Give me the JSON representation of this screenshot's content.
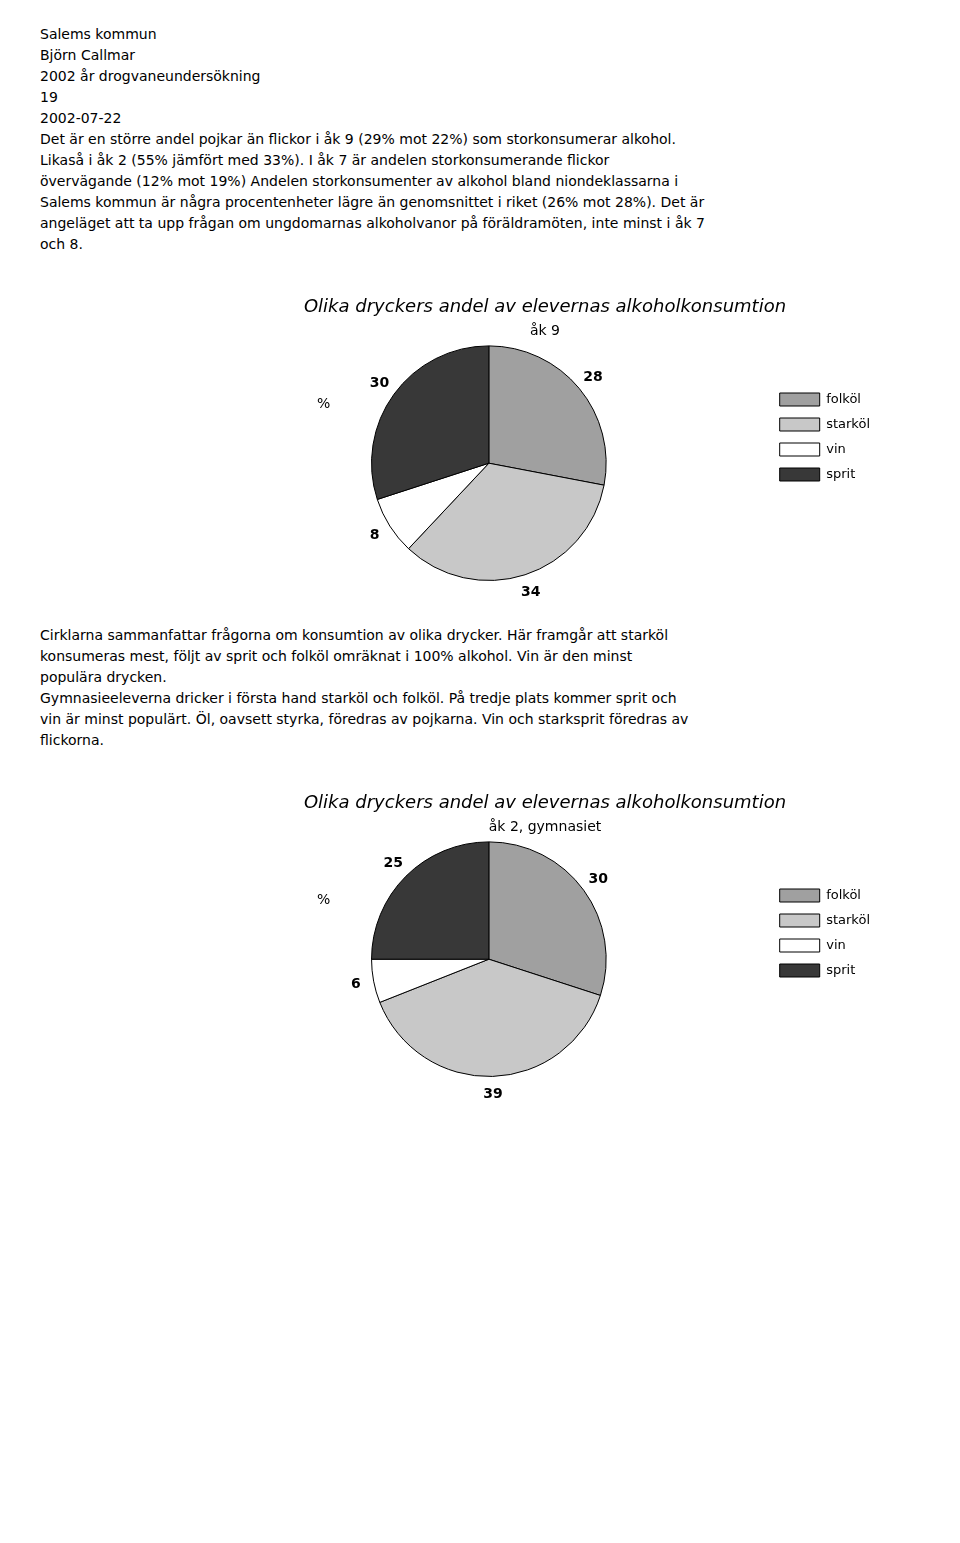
{
  "chart_data": [
    {
      "type": "pie",
      "title": "Olika dryckers andel av elevernas alkoholkonsumtion",
      "subtitle": "åk 9",
      "annotations": [
        "Salems kommun",
        "Björn Callmar",
        "2002 år drogvaneundersökning",
        "19",
        "2002-07-22",
        "Det är en större andel pojkar än flickor i åk 9 (29% mot 22%) som storkonsumerar alkohol.",
        "Likaså i åk 2 (55% jämfört med 33%). I åk 7 är andelen storkonsumerande flickor",
        "övervägande (12% mot 19%) Andelen storkonsumenter av alkohol bland niondeklassarna i",
        "Salems kommun är några procentenheter lägre än genomsnittet i riket (26% mot 28%). Det är",
        "angeläget att ta upp frågan om ungdomarnas alkoholvanor på föräldramöten, inte minst i åk 7",
        "och 8."
      ],
      "categories": [
        "folköl",
        "starköl",
        "vin",
        "sprit"
      ],
      "values": [
        28,
        34,
        8,
        30
      ],
      "colors": [
        "#a0a0a0",
        "#c8c8c8",
        "#ffffff",
        "#383838"
      ],
      "ylabel": "%",
      "data_labels": true,
      "legend": "right"
    },
    {
      "type": "pie",
      "title": "Olika dryckers andel av elevernas alkoholkonsumtion",
      "subtitle": "åk 2, gymnasiet",
      "annotations": [
        "Cirklarna sammanfattar frågorna om konsumtion av olika drycker. Här framgår att starköl",
        "konsumeras mest, följt av sprit och folköl omräknat i 100% alkohol. Vin är den minst",
        "populära drycken.",
        "Gymnasieeleverna dricker i första hand starköl och folköl. På tredje plats kommer sprit och",
        "vin är minst populärt. Öl, oavsett styrka, föredras av pojkarna. Vin och starksprit föredras av",
        "flickorna."
      ],
      "categories": [
        "folköl",
        "starköl",
        "vin",
        "sprit"
      ],
      "values": [
        30,
        39,
        6,
        25
      ],
      "colors": [
        "#a0a0a0",
        "#c8c8c8",
        "#ffffff",
        "#383838"
      ],
      "ylabel": "%",
      "data_labels": true,
      "legend": "right"
    }
  ]
}
